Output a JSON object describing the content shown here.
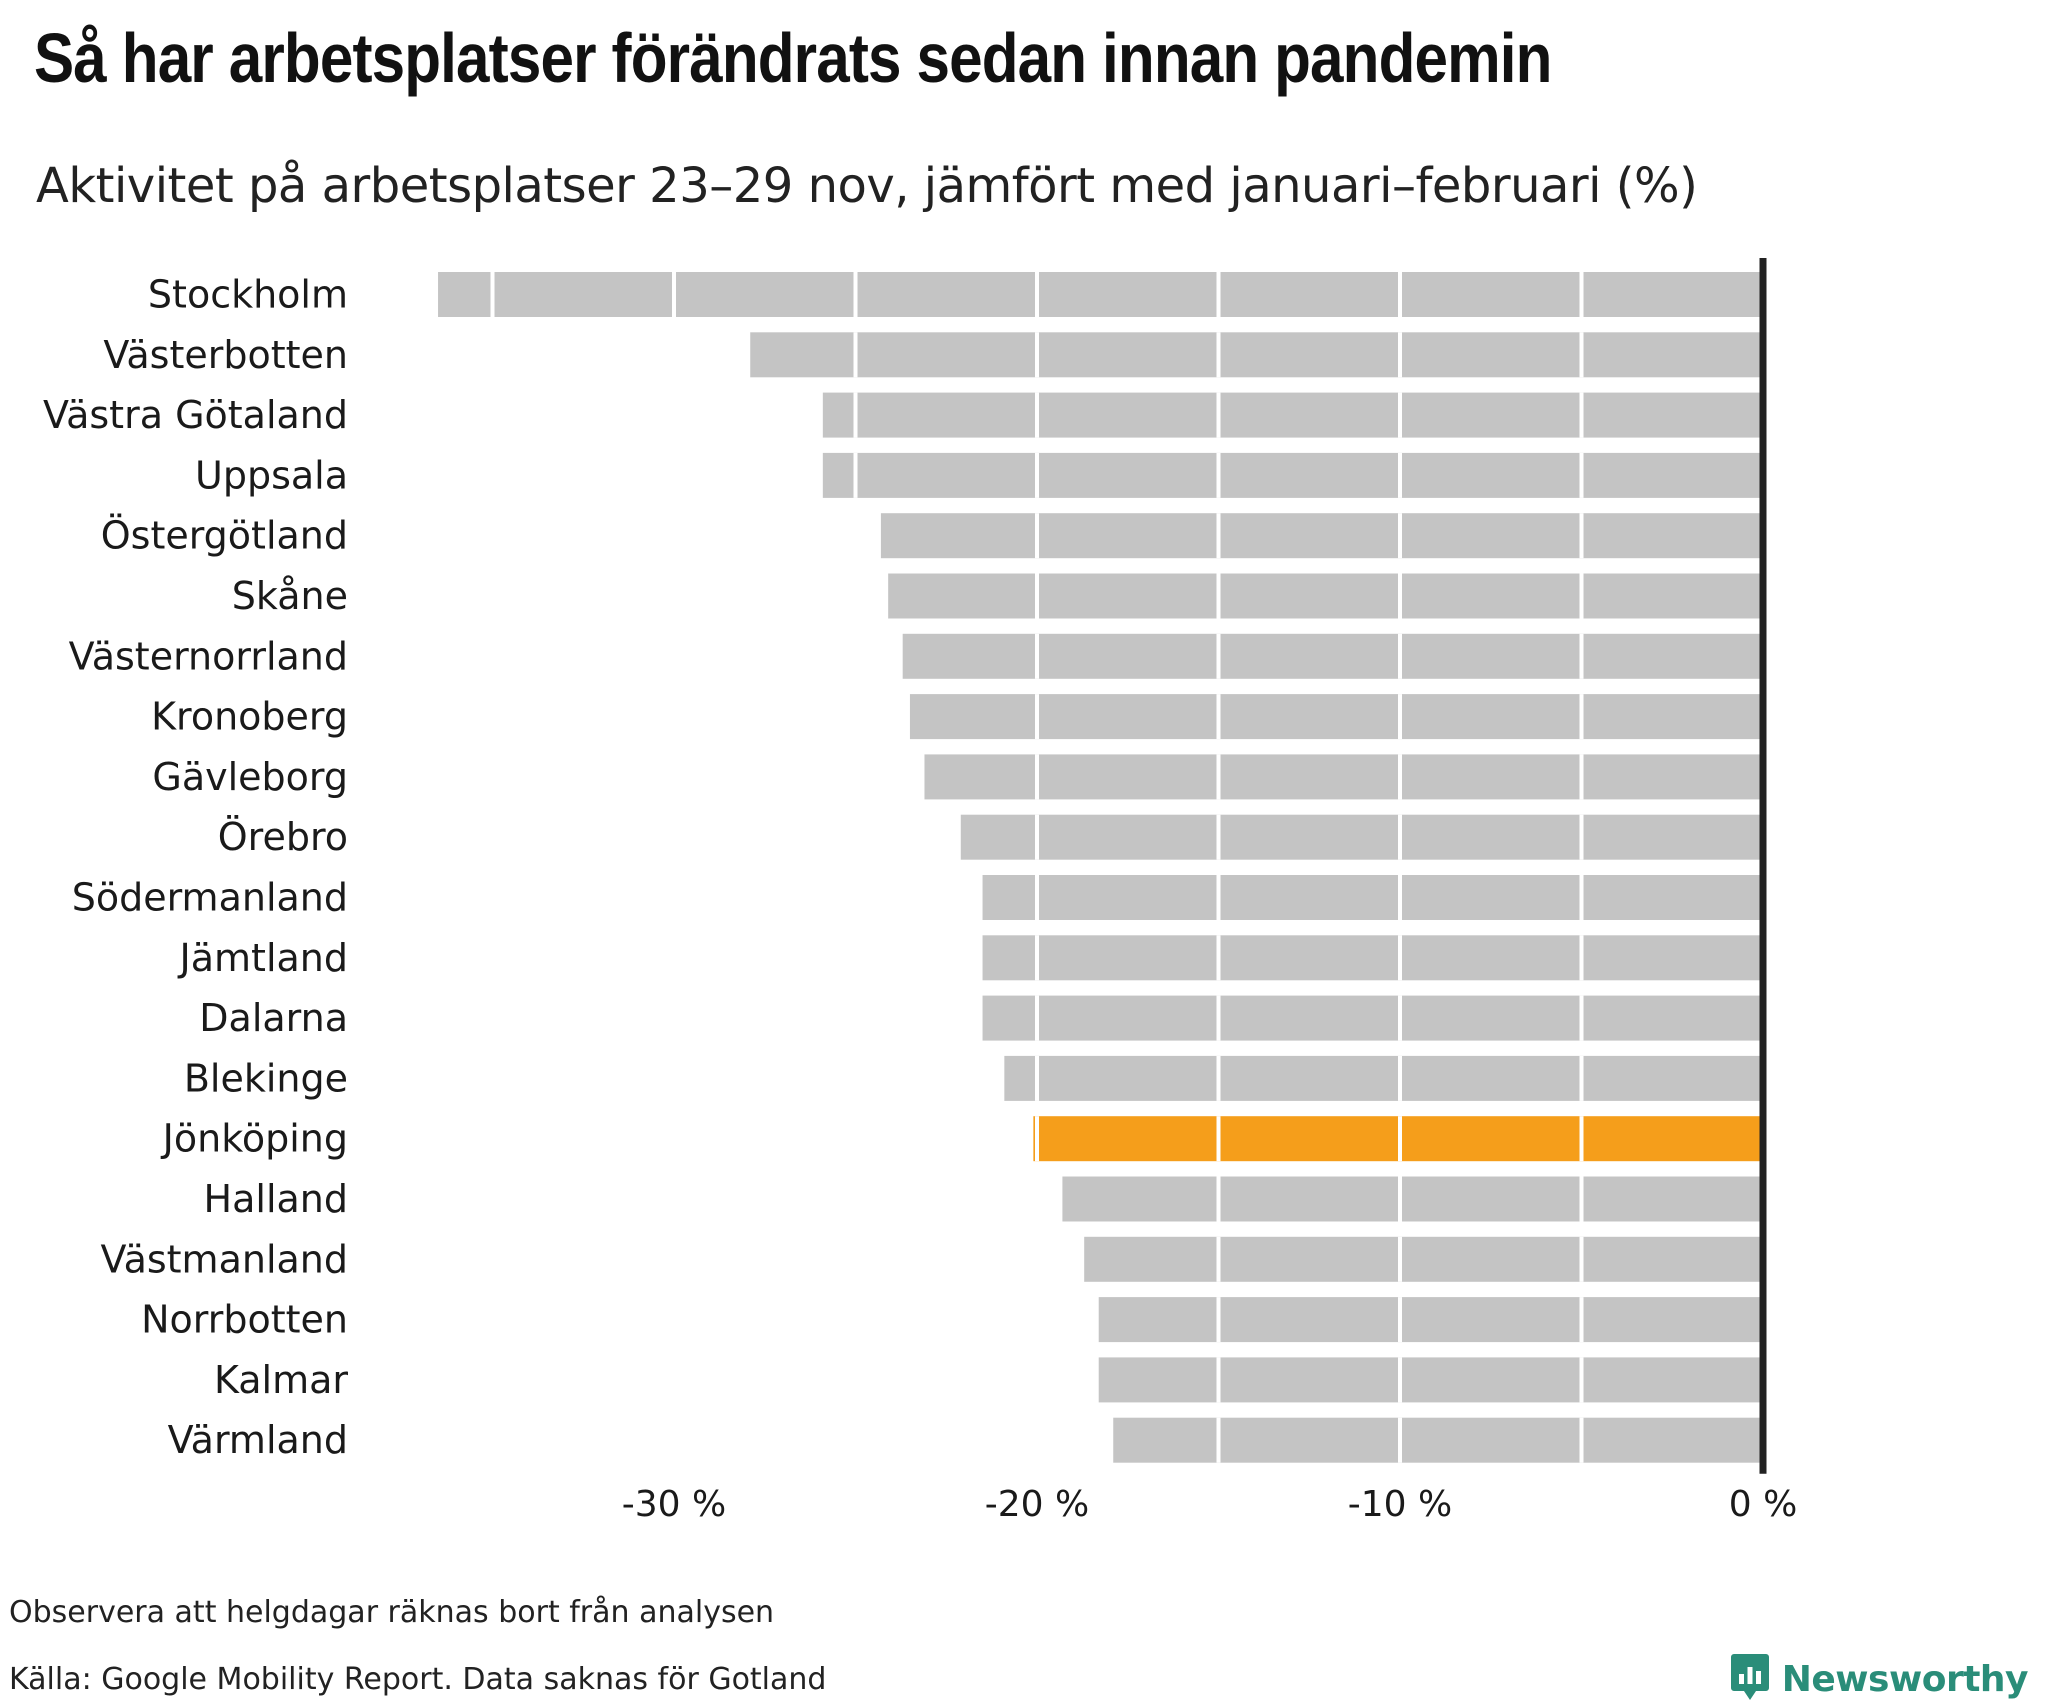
{
  "title": "Så har arbetsplatser förändrats sedan innan pandemin",
  "subtitle": "Aktivitet på arbetsplatser 23–29 nov, jämfört med januari–februari (%)",
  "footer": {
    "note": "Observera att helgdagar räknas bort från analysen",
    "source": "Källa: Google Mobility Report. Data saknas för Gotland"
  },
  "brand": {
    "name": "Newsworthy",
    "icon": "newsworthy-logo-icon",
    "color": "#2a8d79"
  },
  "colors": {
    "bar": "#c4c4c4",
    "highlight": "#f59e1b",
    "zero_line": "#222222",
    "divider": "#ffffff"
  },
  "chart_data": {
    "type": "bar",
    "orientation": "horizontal",
    "categories": [
      "Stockholm",
      "Västerbotten",
      "Västra Götaland",
      "Uppsala",
      "Östergötland",
      "Skåne",
      "Västernorrland",
      "Kronoberg",
      "Gävleborg",
      "Örebro",
      "Södermanland",
      "Jämtland",
      "Dalarna",
      "Blekinge",
      "Jönköping",
      "Halland",
      "Västmanland",
      "Norrbotten",
      "Kalmar",
      "Värmland"
    ],
    "values": [
      -36.5,
      -27.9,
      -25.9,
      -25.9,
      -24.3,
      -24.1,
      -23.7,
      -23.5,
      -23.1,
      -22.1,
      -21.5,
      -21.5,
      -21.5,
      -20.9,
      -20.1,
      -19.3,
      -18.7,
      -18.3,
      -18.3,
      -17.9
    ],
    "highlight": "Jönköping",
    "xlim": [
      -36.5,
      0
    ],
    "xticks": [
      -30,
      -20,
      -10,
      0
    ],
    "xtick_labels": [
      "-30 %",
      "-20 %",
      "-10 %",
      "0 %"
    ],
    "xlabel": "",
    "ylabel": "",
    "grid": false,
    "legend": "none"
  }
}
